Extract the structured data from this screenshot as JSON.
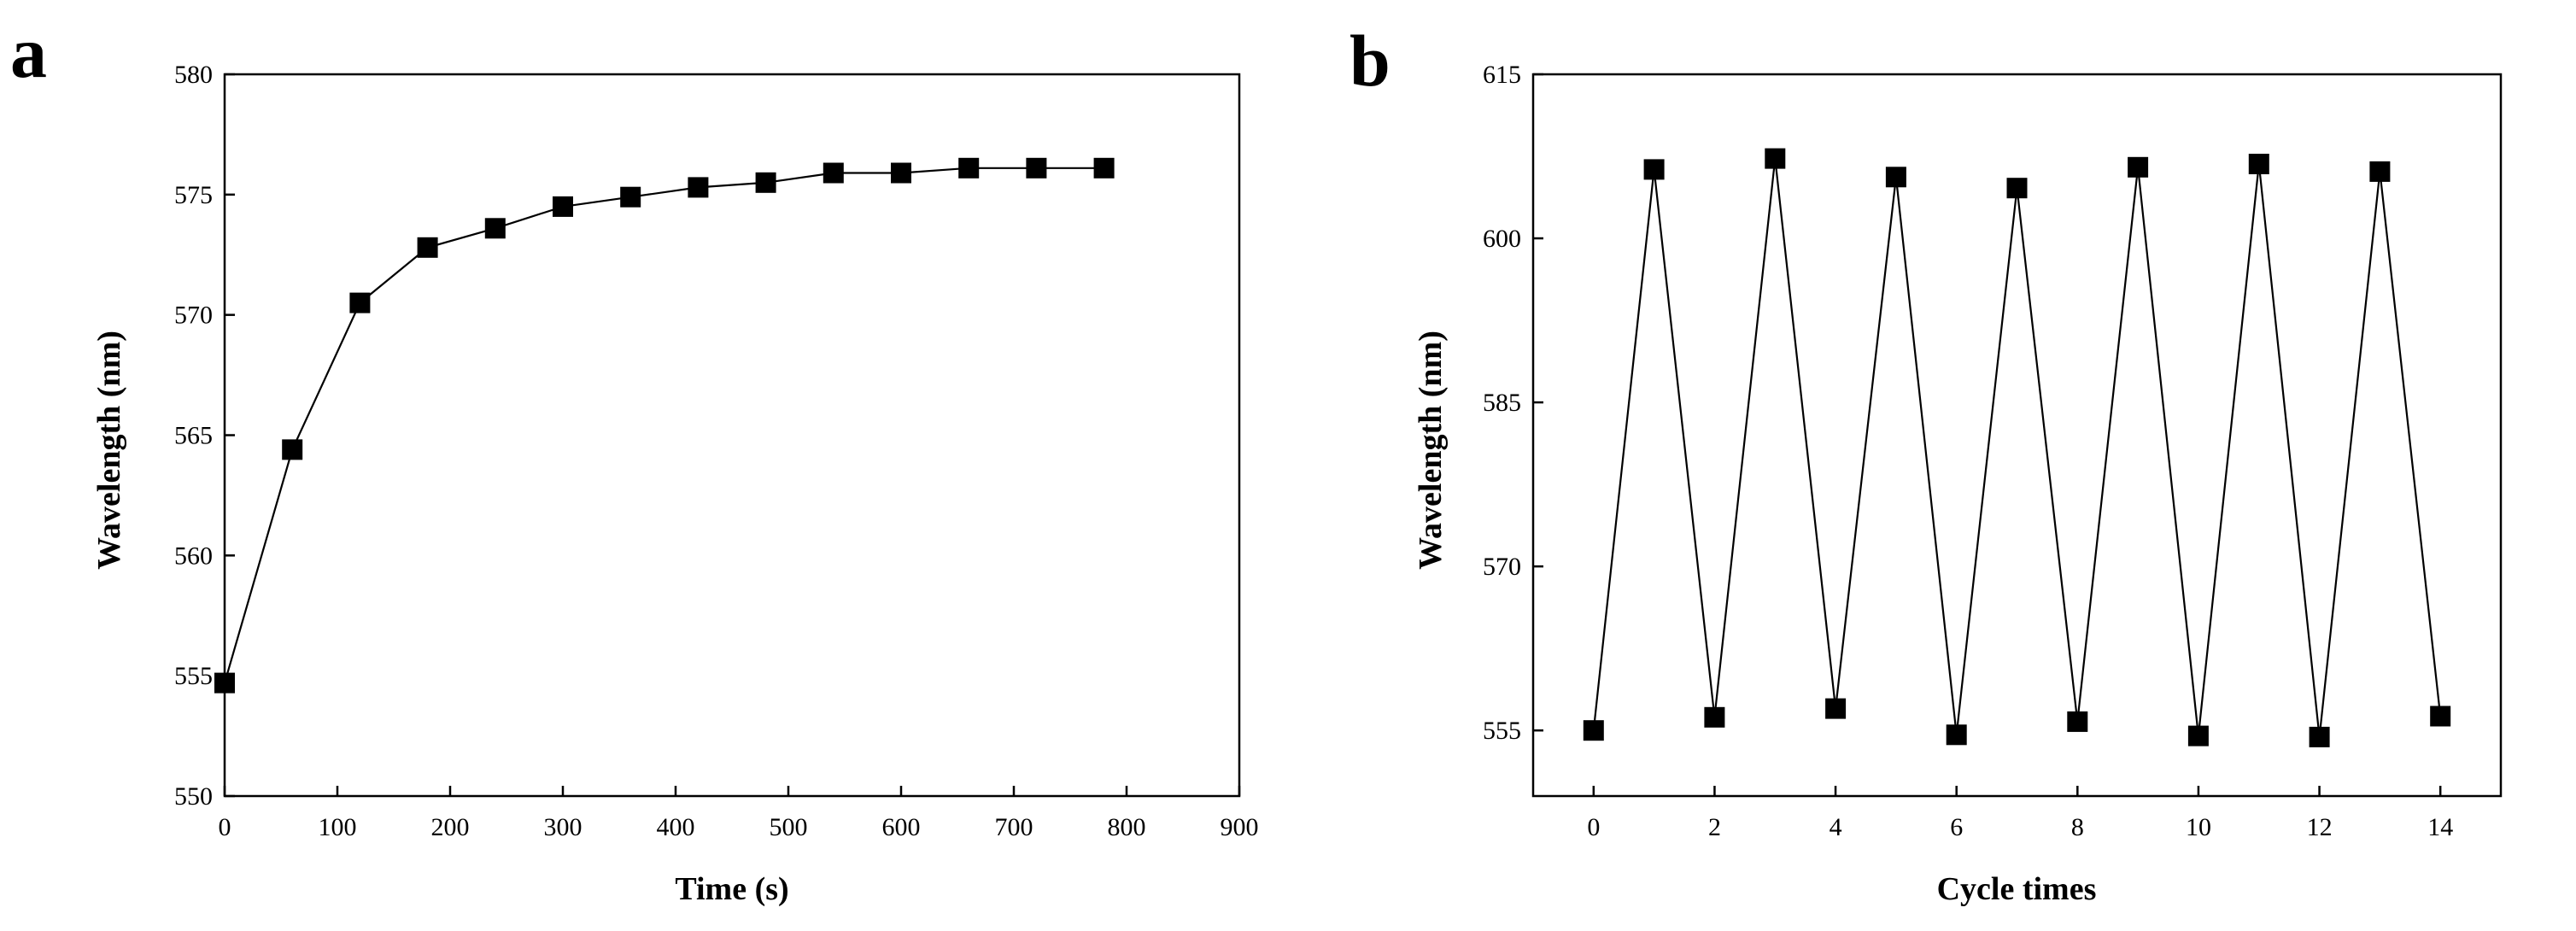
{
  "chart_data": [
    {
      "panel": "a",
      "type": "line",
      "title": "",
      "xlabel": "Time (s)",
      "ylabel": "Wavelength (nm)",
      "xlim": [
        0,
        900
      ],
      "ylim": [
        550,
        580
      ],
      "xticks": [
        0,
        100,
        200,
        300,
        400,
        500,
        600,
        700,
        800,
        900
      ],
      "yticks": [
        550,
        555,
        560,
        565,
        570,
        575,
        580
      ],
      "grid": false,
      "marker": "square",
      "series": [
        {
          "name": "",
          "x": [
            0,
            60,
            120,
            180,
            240,
            300,
            360,
            420,
            480,
            540,
            600,
            660,
            720,
            780
          ],
          "y": [
            554.7,
            564.4,
            570.5,
            572.8,
            573.6,
            574.5,
            574.9,
            575.3,
            575.5,
            575.9,
            575.9,
            576.1,
            576.1,
            576.1
          ]
        }
      ]
    },
    {
      "panel": "b",
      "type": "line",
      "title": "",
      "xlabel": "Cycle times",
      "ylabel": "Wavelength (nm)",
      "xlim": [
        -1,
        15
      ],
      "ylim": [
        549,
        615
      ],
      "xticks": [
        0,
        2,
        4,
        6,
        8,
        10,
        12,
        14
      ],
      "yticks": [
        555,
        570,
        585,
        600,
        615
      ],
      "grid": false,
      "marker": "square",
      "series": [
        {
          "name": "",
          "x": [
            0,
            1,
            2,
            3,
            4,
            5,
            6,
            7,
            8,
            9,
            10,
            11,
            12,
            13,
            14
          ],
          "y": [
            555.0,
            606.3,
            556.2,
            607.3,
            557.0,
            605.6,
            554.6,
            604.6,
            555.8,
            606.5,
            554.5,
            606.8,
            554.4,
            606.1,
            556.3
          ]
        }
      ]
    }
  ]
}
